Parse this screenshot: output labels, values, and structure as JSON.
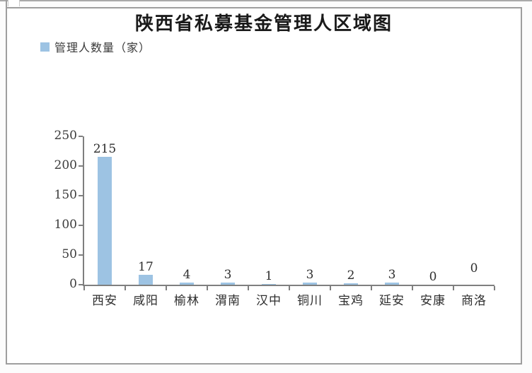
{
  "page": {
    "frame_border_color": "#9e9e9e",
    "background_color": "#ffffff"
  },
  "header": {
    "title": "陕西省私募基金管理人区域图"
  },
  "legend": {
    "label": "管理人数量（家）",
    "swatch_color": "#9dc3e3"
  },
  "chart_data": {
    "type": "bar",
    "title": "陕西省私募基金管理人区域图",
    "series_name": "管理人数量（家）",
    "categories": [
      "西安",
      "咸阳",
      "榆林",
      "渭南",
      "汉中",
      "铜川",
      "宝鸡",
      "延安",
      "安康",
      "商洛"
    ],
    "values": [
      215,
      17,
      4,
      3,
      1,
      3,
      2,
      3,
      0,
      0
    ],
    "data_labels": [
      "215",
      "17",
      "4",
      "3",
      "1",
      "3",
      "2",
      "3",
      "0",
      "0"
    ],
    "label_y_offsets": [
      0,
      0,
      0,
      0,
      0,
      0,
      0,
      0,
      0,
      12
    ],
    "xlabel": "",
    "ylabel": "",
    "ylim": [
      0,
      250
    ],
    "yticks": [
      0,
      50,
      100,
      150,
      200,
      250
    ],
    "grid": false,
    "legend_position": "top-left",
    "bar_color": "#9dc3e3",
    "axis_color": "#7f7f7f",
    "label_color": "#2e2e2e"
  }
}
